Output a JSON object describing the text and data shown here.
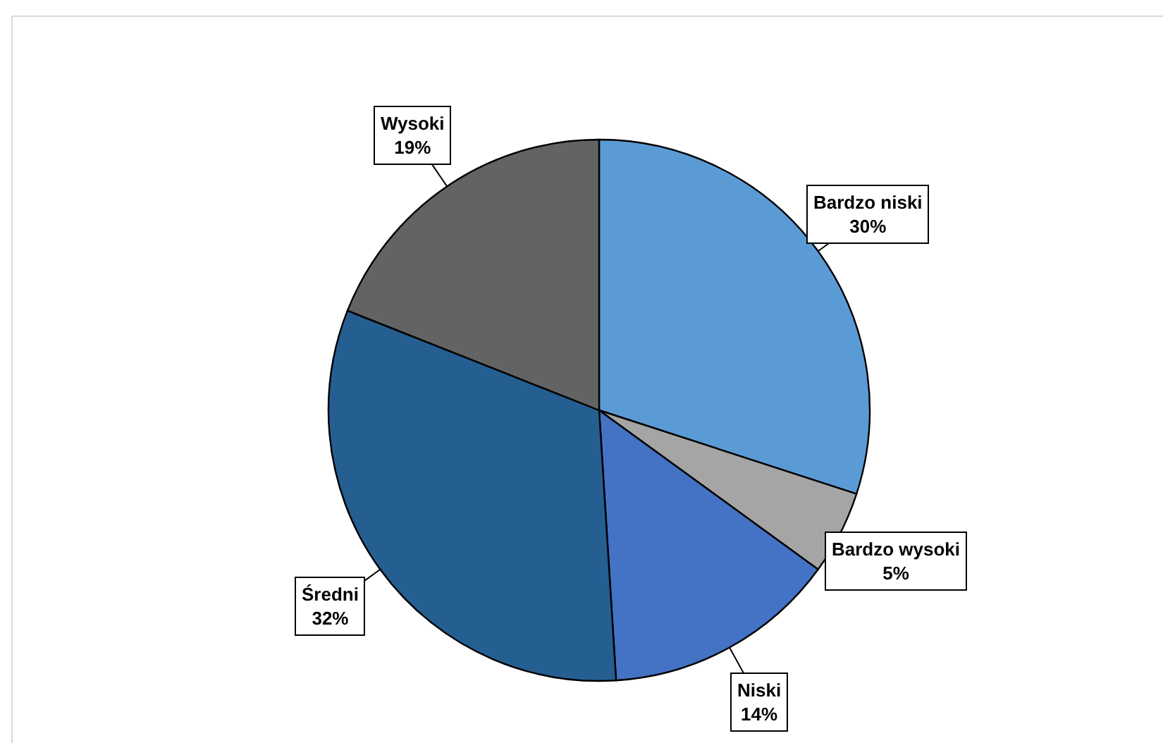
{
  "chart_data": {
    "type": "pie",
    "categories": [
      "Bardzo niski",
      "Bardzo wysoki",
      "Niski",
      "Średni",
      "Wysoki"
    ],
    "values": [
      30,
      5,
      14,
      32,
      19
    ],
    "colors": [
      "#5b9bd5",
      "#a5a5a5",
      "#4472c4",
      "#255e91",
      "#636363"
    ],
    "value_labels": [
      "30%",
      "5%",
      "14%",
      "32%",
      "19%"
    ]
  }
}
